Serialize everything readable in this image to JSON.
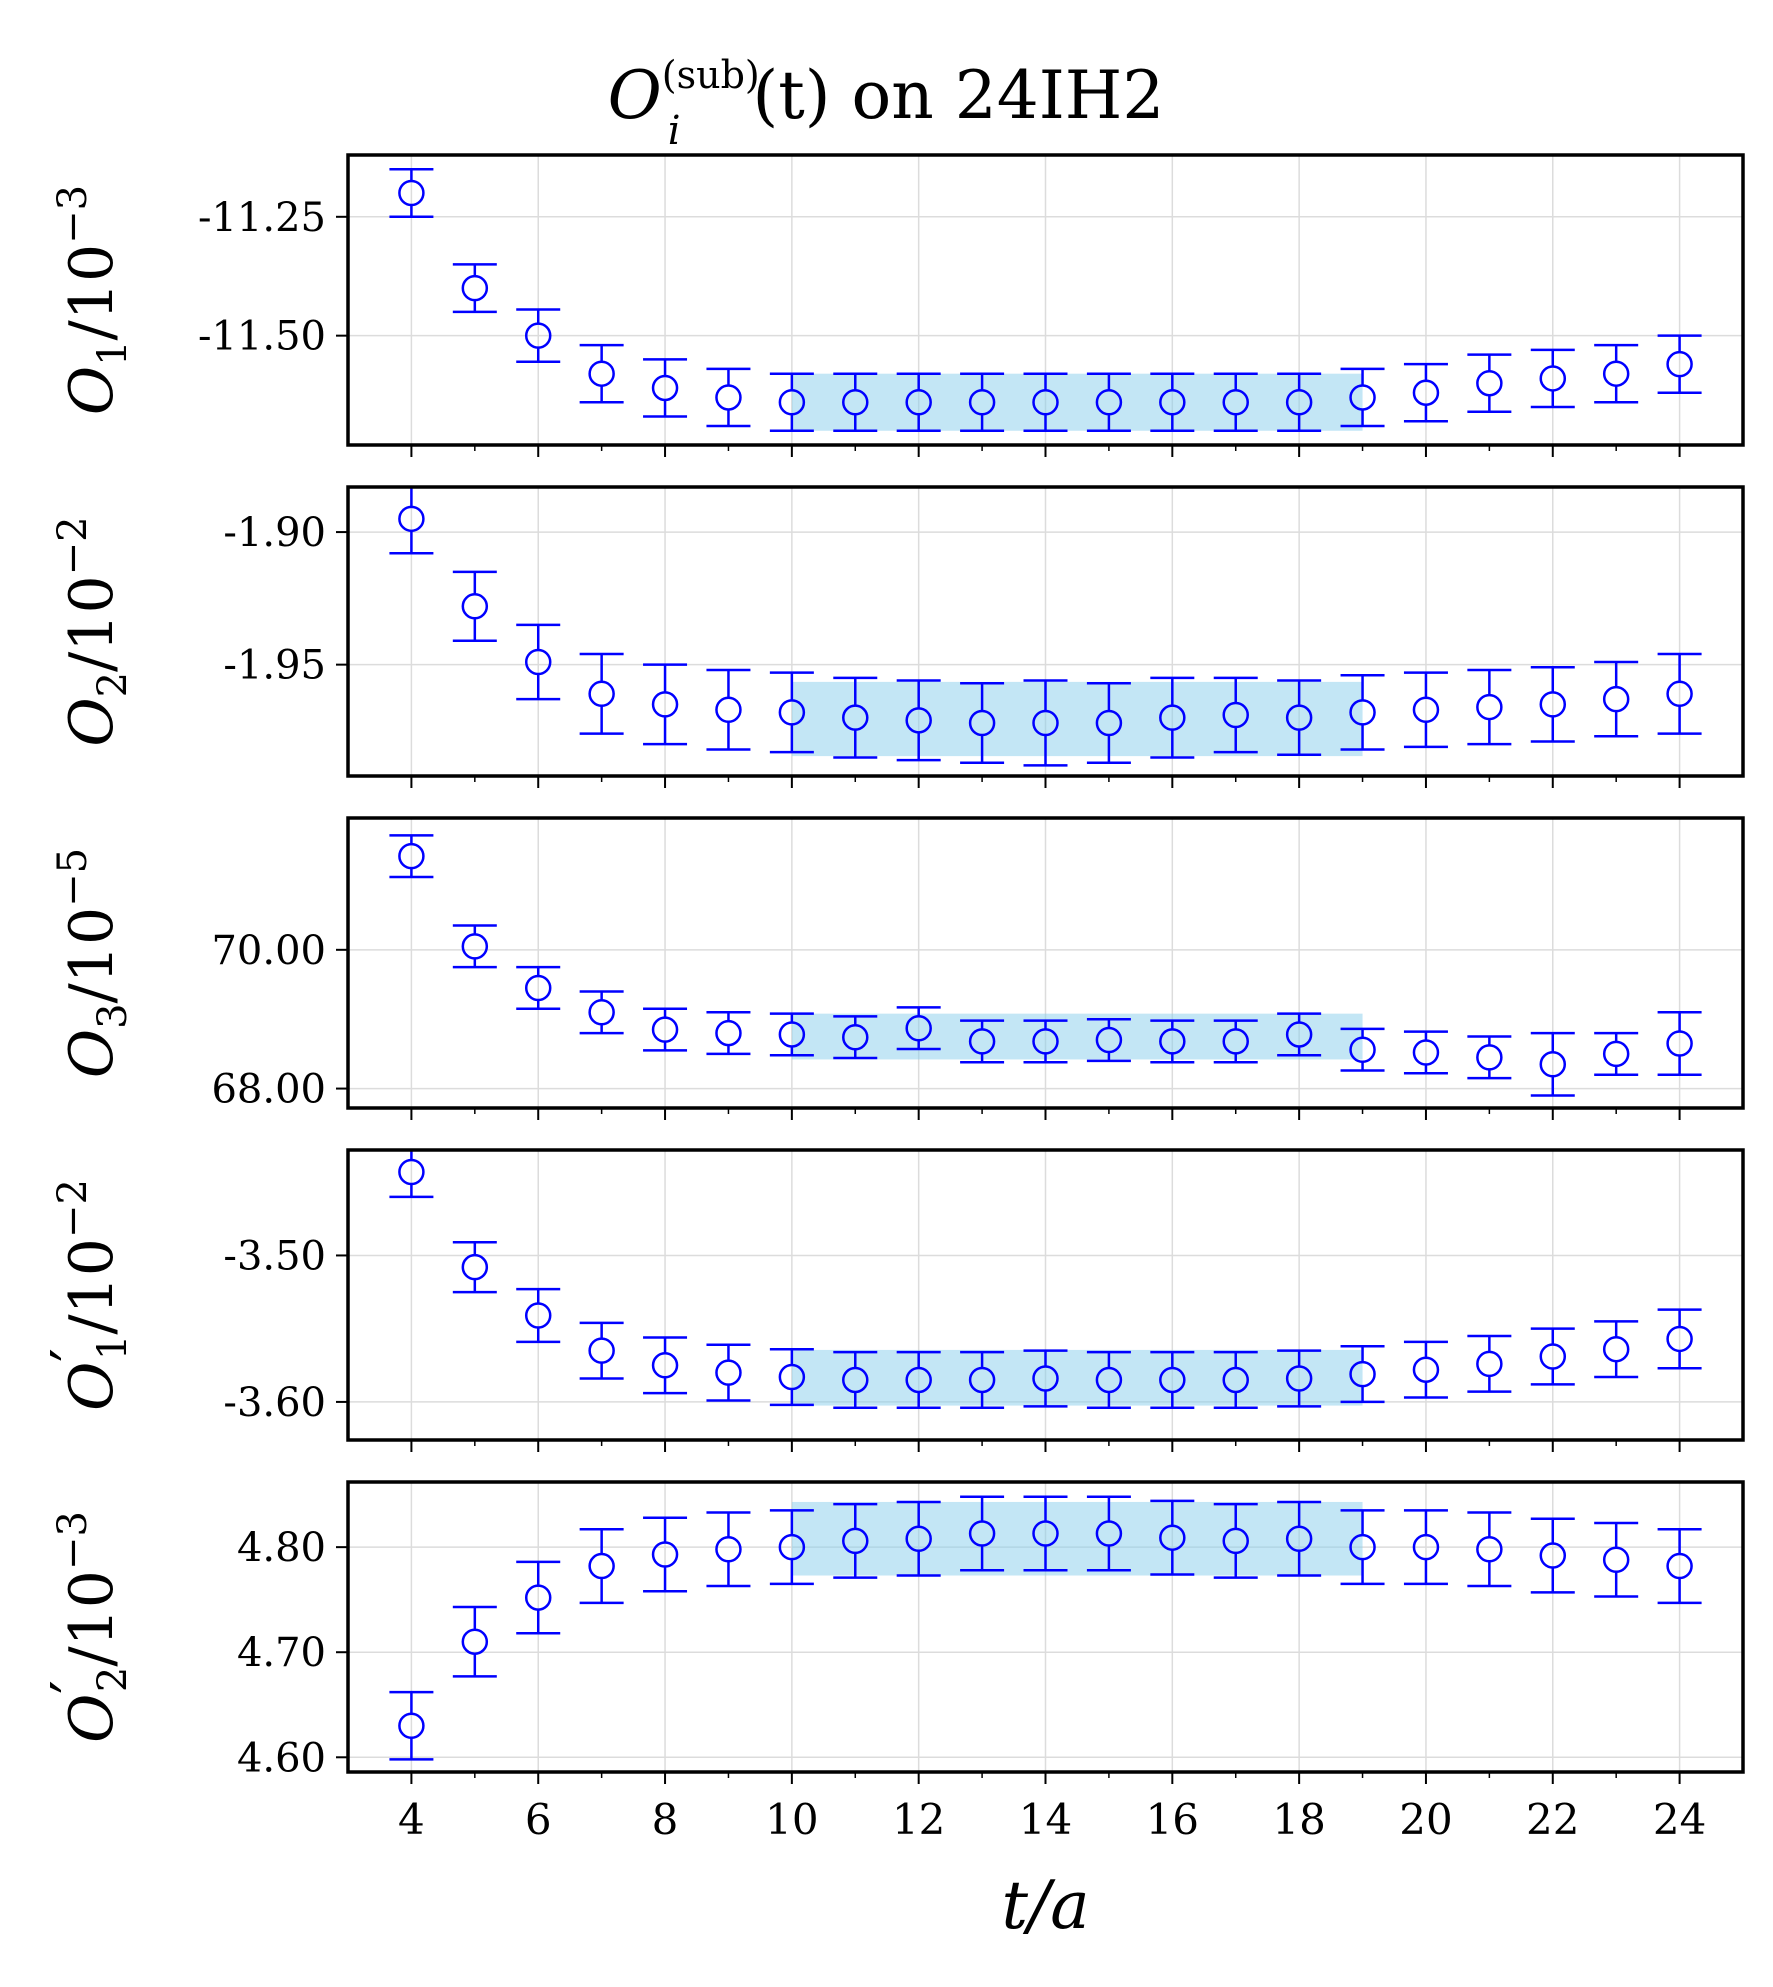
{
  "figure": {
    "title_main": "O",
    "title_sub": "i",
    "title_sup": "(sub)",
    "title_rest": "(t) on 24IH2"
  },
  "colors": {
    "marker": "#0000ff",
    "band": "#87ceeb",
    "axes": "#000000",
    "grid": "#dcdcdc"
  },
  "chart_data": [
    {
      "type": "scatter",
      "ylabel_main": "O",
      "ylabel_sub": "1",
      "ylabel_prime": "",
      "ylabel_rest": "/10",
      "ylabel_exp": "−3",
      "ylim": [
        -11.73,
        -11.12
      ],
      "yticks": [
        -11.25,
        -11.5
      ],
      "ytick_labels": [
        "-11.25",
        "-11.50"
      ],
      "x": [
        4,
        5,
        6,
        7,
        8,
        9,
        10,
        11,
        12,
        13,
        14,
        15,
        16,
        17,
        18,
        19,
        20,
        21,
        22,
        23,
        24
      ],
      "y": [
        -11.2,
        -11.4,
        -11.5,
        -11.58,
        -11.61,
        -11.63,
        -11.64,
        -11.64,
        -11.64,
        -11.64,
        -11.64,
        -11.64,
        -11.64,
        -11.64,
        -11.64,
        -11.63,
        -11.62,
        -11.6,
        -11.59,
        -11.58,
        -11.56
      ],
      "yerr": [
        0.05,
        0.05,
        0.055,
        0.06,
        0.06,
        0.06,
        0.06,
        0.06,
        0.06,
        0.06,
        0.06,
        0.06,
        0.06,
        0.06,
        0.06,
        0.06,
        0.06,
        0.06,
        0.06,
        0.06,
        0.06
      ],
      "fit_band": {
        "x_range": [
          10,
          19
        ],
        "center": -11.64,
        "half_width": 0.06
      }
    },
    {
      "type": "scatter",
      "ylabel_main": "O",
      "ylabel_sub": "2",
      "ylabel_prime": "",
      "ylabel_rest": "/10",
      "ylabel_exp": "−2",
      "ylim": [
        -1.992,
        -1.883
      ],
      "yticks": [
        -1.9,
        -1.95
      ],
      "ytick_labels": [
        "-1.90",
        "-1.95"
      ],
      "x": [
        4,
        5,
        6,
        7,
        8,
        9,
        10,
        11,
        12,
        13,
        14,
        15,
        16,
        17,
        18,
        19,
        20,
        21,
        22,
        23,
        24
      ],
      "y": [
        -1.895,
        -1.928,
        -1.949,
        -1.961,
        -1.965,
        -1.967,
        -1.968,
        -1.97,
        -1.971,
        -1.972,
        -1.972,
        -1.972,
        -1.97,
        -1.969,
        -1.97,
        -1.968,
        -1.967,
        -1.966,
        -1.965,
        -1.963,
        -1.961
      ],
      "yerr": [
        0.013,
        0.013,
        0.014,
        0.015,
        0.015,
        0.015,
        0.015,
        0.015,
        0.015,
        0.015,
        0.016,
        0.015,
        0.015,
        0.014,
        0.014,
        0.014,
        0.014,
        0.014,
        0.014,
        0.014,
        0.015
      ],
      "fit_band": {
        "x_range": [
          10,
          19
        ],
        "center": -1.9705,
        "half_width": 0.014
      }
    },
    {
      "type": "scatter",
      "ylabel_main": "O",
      "ylabel_sub": "3",
      "ylabel_prime": "",
      "ylabel_rest": "/10",
      "ylabel_exp": "−5",
      "ylim": [
        67.72,
        71.9
      ],
      "yticks": [
        70,
        68
      ],
      "ytick_labels": [
        "70.00",
        "68.00"
      ],
      "x": [
        4,
        5,
        6,
        7,
        8,
        9,
        10,
        11,
        12,
        13,
        14,
        15,
        16,
        17,
        18,
        19,
        20,
        21,
        22,
        23,
        24
      ],
      "y": [
        71.35,
        70.05,
        69.45,
        69.1,
        68.85,
        68.8,
        68.78,
        68.74,
        68.87,
        68.68,
        68.68,
        68.7,
        68.68,
        68.68,
        68.78,
        68.56,
        68.52,
        68.45,
        68.35,
        68.5,
        68.65
      ],
      "yerr": [
        0.3,
        0.3,
        0.3,
        0.3,
        0.3,
        0.3,
        0.3,
        0.3,
        0.3,
        0.3,
        0.3,
        0.3,
        0.3,
        0.3,
        0.3,
        0.3,
        0.3,
        0.3,
        0.45,
        0.3,
        0.45
      ],
      "fit_band": {
        "x_range": [
          10,
          19
        ],
        "center": 68.75,
        "half_width": 0.33
      }
    },
    {
      "type": "scatter",
      "ylabel_main": "O",
      "ylabel_sub": "1",
      "ylabel_prime": "′",
      "ylabel_rest": "/10",
      "ylabel_exp": "−2",
      "ylim": [
        -3.626,
        -3.428
      ],
      "yticks": [
        -3.5,
        -3.6
      ],
      "ytick_labels": [
        "-3.50",
        "-3.60"
      ],
      "x": [
        4,
        5,
        6,
        7,
        8,
        9,
        10,
        11,
        12,
        13,
        14,
        15,
        16,
        17,
        18,
        19,
        20,
        21,
        22,
        23,
        24
      ],
      "y": [
        -3.443,
        -3.508,
        -3.541,
        -3.565,
        -3.575,
        -3.58,
        -3.583,
        -3.585,
        -3.585,
        -3.585,
        -3.584,
        -3.585,
        -3.585,
        -3.585,
        -3.584,
        -3.581,
        -3.578,
        -3.574,
        -3.569,
        -3.564,
        -3.557
      ],
      "yerr": [
        0.017,
        0.017,
        0.018,
        0.019,
        0.019,
        0.019,
        0.019,
        0.019,
        0.019,
        0.019,
        0.019,
        0.019,
        0.019,
        0.019,
        0.019,
        0.019,
        0.019,
        0.019,
        0.019,
        0.019,
        0.02
      ],
      "fit_band": {
        "x_range": [
          10,
          19
        ],
        "center": -3.5835,
        "half_width": 0.019
      }
    },
    {
      "type": "scatter",
      "ylabel_main": "O",
      "ylabel_sub": "2",
      "ylabel_prime": "′",
      "ylabel_rest": "/10",
      "ylabel_exp": "−3",
      "ylim": [
        4.586,
        4.862
      ],
      "yticks": [
        4.8,
        4.7,
        4.6
      ],
      "ytick_labels": [
        "4.80",
        "4.70",
        "4.60"
      ],
      "x": [
        4,
        5,
        6,
        7,
        8,
        9,
        10,
        11,
        12,
        13,
        14,
        15,
        16,
        17,
        18,
        19,
        20,
        21,
        22,
        23,
        24
      ],
      "y": [
        4.63,
        4.71,
        4.752,
        4.782,
        4.793,
        4.798,
        4.8,
        4.806,
        4.808,
        4.813,
        4.813,
        4.813,
        4.809,
        4.806,
        4.808,
        4.8,
        4.8,
        4.798,
        4.792,
        4.788,
        4.782
      ],
      "yerr": [
        0.032,
        0.033,
        0.034,
        0.035,
        0.035,
        0.035,
        0.035,
        0.035,
        0.035,
        0.035,
        0.035,
        0.035,
        0.035,
        0.035,
        0.035,
        0.035,
        0.035,
        0.035,
        0.035,
        0.035,
        0.035
      ],
      "fit_band": {
        "x_range": [
          10,
          19
        ],
        "center": 4.808,
        "half_width": 0.035
      }
    }
  ],
  "xaxis": {
    "xlim": [
      3,
      25
    ],
    "xticks": [
      4,
      6,
      8,
      10,
      12,
      14,
      16,
      18,
      20,
      22,
      24
    ],
    "xtick_labels": [
      "4",
      "6",
      "8",
      "10",
      "12",
      "14",
      "16",
      "18",
      "20",
      "22",
      "24"
    ],
    "minor_xticks": [
      5,
      7,
      9,
      11,
      13,
      15,
      17,
      19,
      21,
      23
    ],
    "xlabel_main": "t",
    "xlabel_rest": "/a"
  }
}
